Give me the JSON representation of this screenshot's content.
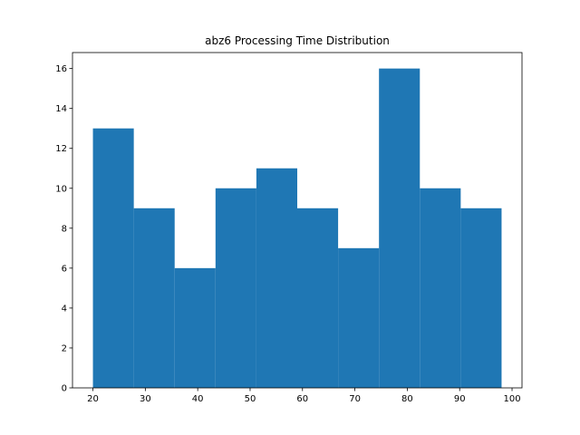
{
  "chart_data": {
    "type": "bar",
    "title": "abz6 Processing Time Distribution",
    "xlabel": "",
    "ylabel": "",
    "bin_edges": [
      20.0,
      27.8,
      35.6,
      43.4,
      51.2,
      59.0,
      66.8,
      74.6,
      82.4,
      90.2,
      98.0
    ],
    "values": [
      13,
      9,
      6,
      10,
      11,
      9,
      7,
      16,
      10,
      9
    ],
    "xlim": [
      16.1,
      101.9
    ],
    "ylim": [
      0,
      16.8
    ],
    "xticks": [
      20,
      30,
      40,
      50,
      60,
      70,
      80,
      90,
      100
    ],
    "yticks": [
      0,
      2,
      4,
      6,
      8,
      10,
      12,
      14,
      16
    ],
    "bar_color": "#1f77b4",
    "grid": false,
    "legend": "none"
  }
}
